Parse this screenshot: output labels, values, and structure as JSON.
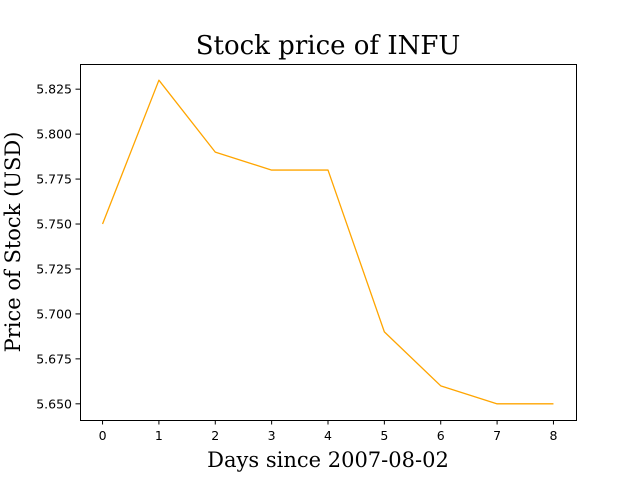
{
  "chart_data": {
    "type": "line",
    "title": "Stock price of INFU",
    "xlabel": "Days since 2007-08-02",
    "ylabel": "Price of Stock (USD)",
    "x": [
      0,
      1,
      2,
      3,
      4,
      5,
      6,
      7,
      8
    ],
    "series": [
      {
        "values": [
          5.75,
          5.83,
          5.79,
          5.78,
          5.78,
          5.69,
          5.66,
          5.65,
          5.65
        ]
      }
    ],
    "xlim": [
      -0.4,
      8.4
    ],
    "ylim": [
      5.641,
      5.839
    ],
    "xticks": [
      0,
      1,
      2,
      3,
      4,
      5,
      6,
      7,
      8
    ],
    "xtick_labels": [
      "0",
      "1",
      "2",
      "3",
      "4",
      "5",
      "6",
      "7",
      "8"
    ],
    "yticks": [
      5.65,
      5.675,
      5.7,
      5.725,
      5.75,
      5.775,
      5.8,
      5.825
    ],
    "ytick_labels": [
      "5.650",
      "5.675",
      "5.700",
      "5.725",
      "5.750",
      "5.775",
      "5.800",
      "5.825"
    ],
    "line_color": "#ffa500",
    "grid": false,
    "legend": false
  }
}
